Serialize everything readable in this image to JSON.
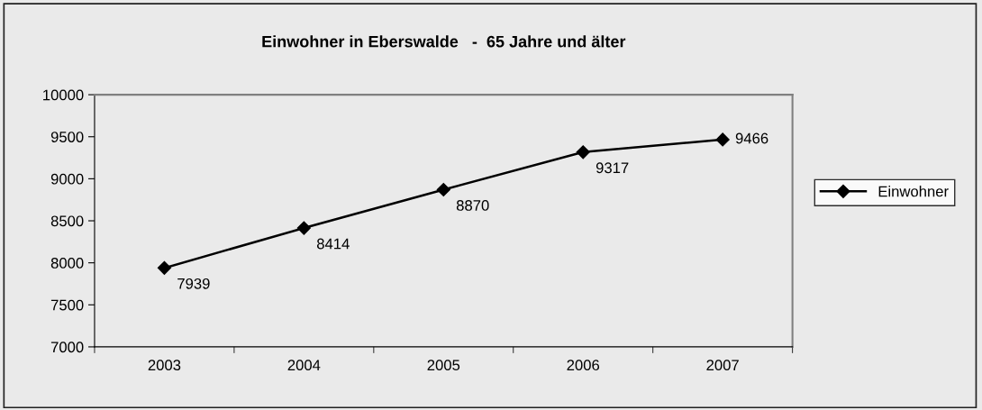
{
  "chart_data": {
    "type": "line",
    "title": "Einwohner in Eberswalde   -  65 Jahre und älter",
    "categories": [
      "2003",
      "2004",
      "2005",
      "2006",
      "2007"
    ],
    "series": [
      {
        "name": "Einwohner",
        "color": "#000000",
        "values": [
          7939,
          8414,
          8870,
          9317,
          9466
        ]
      }
    ],
    "ylim": [
      7000,
      10000
    ],
    "yticks": [
      7000,
      7500,
      8000,
      8500,
      9000,
      9500,
      10000
    ],
    "grid": false,
    "legend": "right",
    "marker": "diamond",
    "line_style": "solid",
    "data_labels": true
  }
}
